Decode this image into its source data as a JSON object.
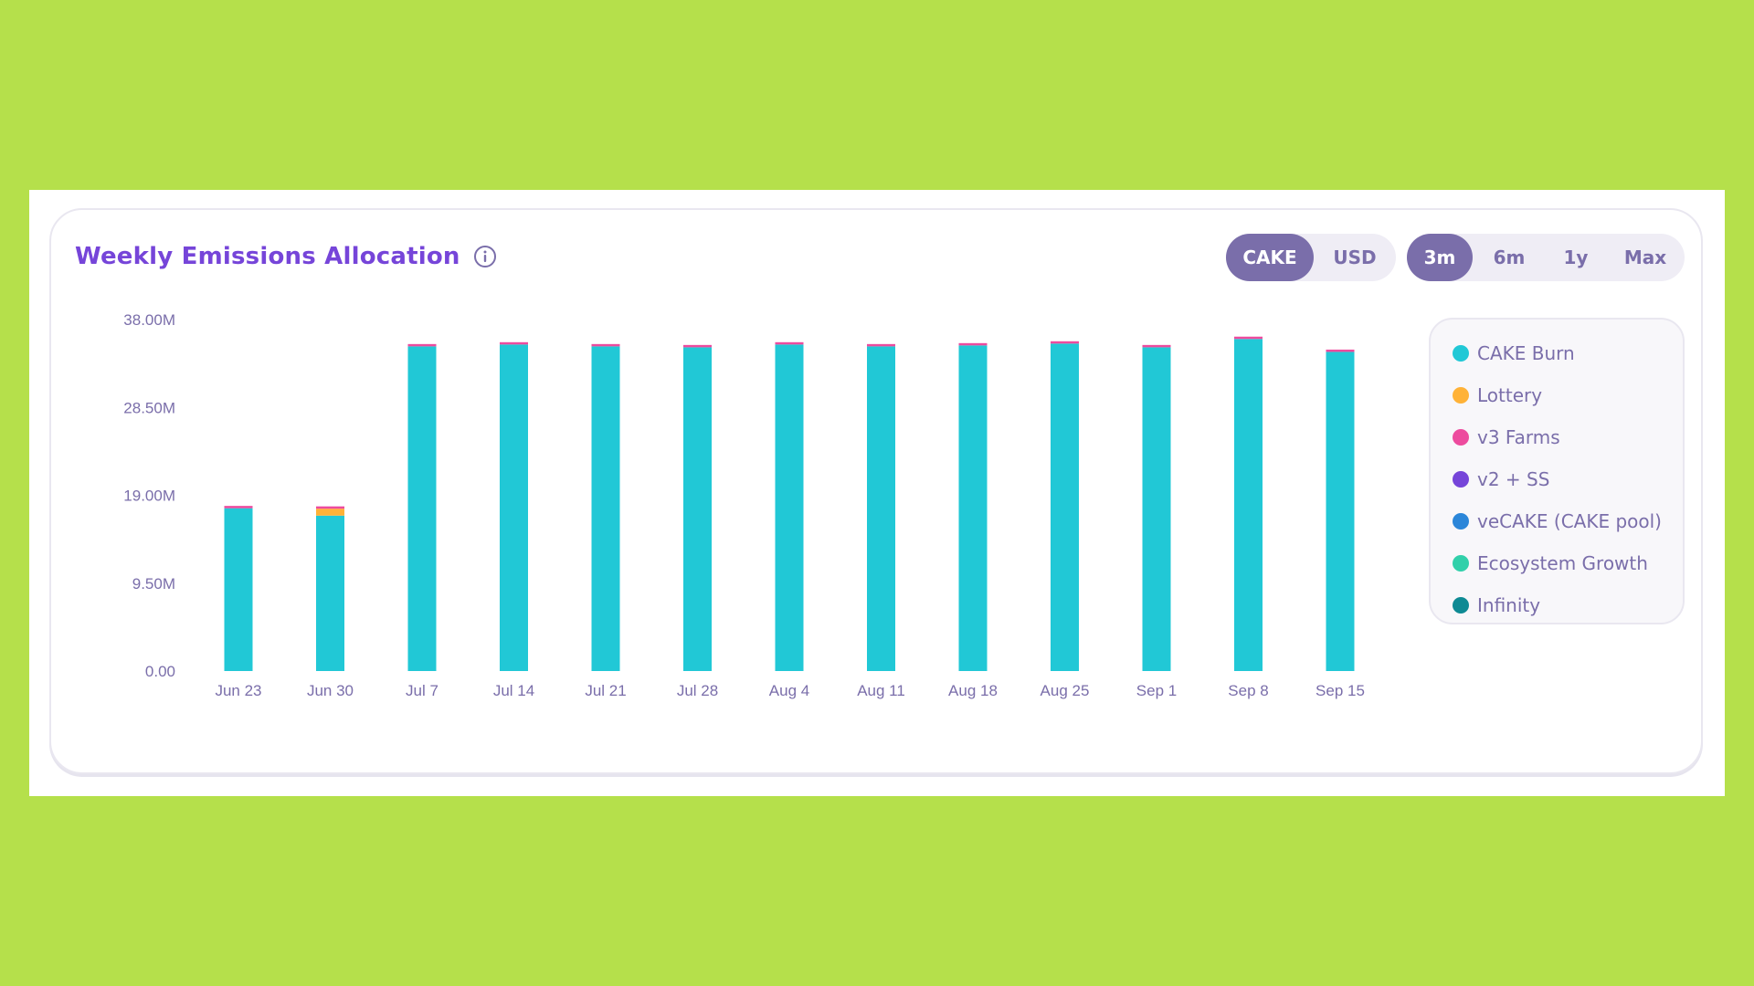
{
  "title": "Weekly Emissions Allocation",
  "unit_toggle": {
    "options": [
      "CAKE",
      "USD"
    ],
    "selected": "CAKE"
  },
  "range_toggle": {
    "options": [
      "3m",
      "6m",
      "1y",
      "Max"
    ],
    "selected": "3m"
  },
  "legend": [
    {
      "label": "CAKE Burn",
      "color": "#21c8d6"
    },
    {
      "label": "Lottery",
      "color": "#ffb237"
    },
    {
      "label": "v3 Farms",
      "color": "#ed4b9e"
    },
    {
      "label": "v2 + SS",
      "color": "#7645d9"
    },
    {
      "label": "veCAKE (CAKE pool)",
      "color": "#2b86d9"
    },
    {
      "label": "Ecosystem Growth",
      "color": "#31d0aa"
    },
    {
      "label": "Infinity",
      "color": "#0e8a94"
    }
  ],
  "colors": {
    "accent": "#7645d9",
    "toggle_active": "#7a6eaa",
    "text_muted": "#7a6eaa",
    "background": "#b5e04b"
  },
  "chart_data": {
    "type": "bar",
    "stacked": true,
    "categories": [
      "Jun 23",
      "Jun 30",
      "Jul 7",
      "Jul 14",
      "Jul 21",
      "Jul 28",
      "Aug 4",
      "Aug 11",
      "Aug 18",
      "Aug 25",
      "Sep 1",
      "Sep 8",
      "Sep 15"
    ],
    "y_ticks": [
      "0.00",
      "9.50M",
      "19.00M",
      "28.50M",
      "38.00M"
    ],
    "ylim": [
      0,
      38000000
    ],
    "grid": false,
    "legend_position": "right",
    "series": [
      {
        "name": "CAKE Burn",
        "values": [
          17600000,
          16800000,
          35100000,
          35300000,
          35100000,
          35000000,
          35300000,
          35100000,
          35200000,
          35400000,
          35000000,
          35900000,
          34500000
        ]
      },
      {
        "name": "Lottery",
        "values": [
          0,
          750000,
          0,
          0,
          0,
          0,
          0,
          0,
          0,
          0,
          0,
          0,
          0
        ]
      },
      {
        "name": "v3 Farms",
        "values": [
          250000,
          250000,
          250000,
          250000,
          250000,
          250000,
          250000,
          250000,
          250000,
          250000,
          250000,
          250000,
          250000
        ]
      },
      {
        "name": "v2 + SS",
        "values": [
          0,
          0,
          0,
          0,
          0,
          0,
          0,
          0,
          0,
          0,
          0,
          0,
          0
        ]
      },
      {
        "name": "veCAKE (CAKE pool)",
        "values": [
          0,
          0,
          0,
          0,
          0,
          0,
          0,
          0,
          0,
          0,
          0,
          0,
          0
        ]
      },
      {
        "name": "Ecosystem Growth",
        "values": [
          0,
          0,
          0,
          0,
          0,
          0,
          0,
          0,
          0,
          0,
          0,
          0,
          0
        ]
      },
      {
        "name": "Infinity",
        "values": [
          0,
          0,
          0,
          0,
          0,
          0,
          0,
          0,
          0,
          0,
          0,
          0,
          0
        ]
      }
    ]
  }
}
